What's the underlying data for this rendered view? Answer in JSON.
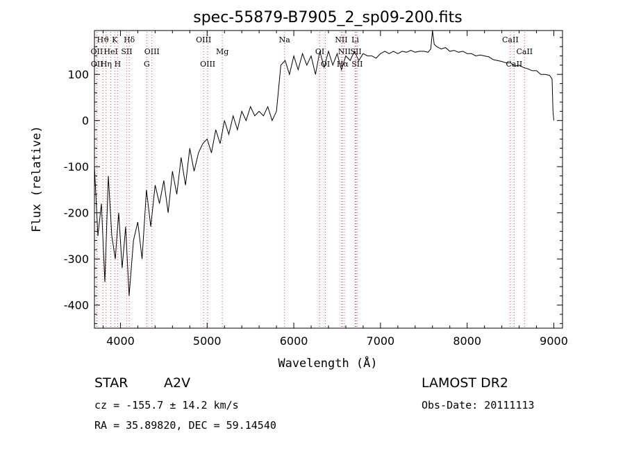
{
  "chart_data": {
    "type": "line",
    "title": "spec-55879-B7905_2_sp09-200.fits",
    "xlabel": "Wavelength (Å)",
    "ylabel": "Flux (relative)",
    "xlim": [
      3700,
      9100
    ],
    "ylim": [
      -450,
      195
    ],
    "xticks": [
      4000,
      5000,
      6000,
      7000,
      8000,
      9000
    ],
    "yticks": [
      -400,
      -300,
      -200,
      -100,
      0,
      100
    ],
    "grid": false,
    "series": [
      {
        "color": "#000000",
        "x": [
          3700,
          3740,
          3780,
          3820,
          3860,
          3900,
          3940,
          3980,
          4020,
          4060,
          4100,
          4150,
          4200,
          4250,
          4300,
          4350,
          4400,
          4450,
          4500,
          4550,
          4600,
          4650,
          4700,
          4750,
          4800,
          4850,
          4900,
          4950,
          5000,
          5050,
          5100,
          5150,
          5200,
          5250,
          5300,
          5350,
          5400,
          5450,
          5500,
          5550,
          5600,
          5650,
          5700,
          5750,
          5800,
          5850,
          5900,
          5950,
          6000,
          6050,
          6100,
          6150,
          6200,
          6250,
          6300,
          6350,
          6400,
          6450,
          6500,
          6550,
          6600,
          6650,
          6700,
          6750,
          6800,
          6850,
          6900,
          6950,
          7000,
          7050,
          7100,
          7150,
          7200,
          7250,
          7300,
          7350,
          7400,
          7450,
          7500,
          7550,
          7580,
          7600,
          7620,
          7650,
          7700,
          7750,
          7800,
          7850,
          7900,
          7950,
          8000,
          8050,
          8100,
          8150,
          8200,
          8250,
          8300,
          8350,
          8400,
          8450,
          8500,
          8550,
          8600,
          8650,
          8700,
          8750,
          8800,
          8850,
          8900,
          8950,
          8980,
          8990,
          9000
        ],
        "values": [
          -100,
          -250,
          -180,
          -350,
          -120,
          -250,
          -300,
          -200,
          -320,
          -230,
          -380,
          -260,
          -220,
          -300,
          -150,
          -230,
          -140,
          -180,
          -130,
          -200,
          -110,
          -160,
          -80,
          -140,
          -60,
          -110,
          -70,
          -50,
          -40,
          -70,
          -20,
          -50,
          0,
          -30,
          10,
          -20,
          20,
          0,
          30,
          10,
          20,
          10,
          30,
          0,
          20,
          120,
          130,
          100,
          140,
          110,
          145,
          120,
          140,
          100,
          150,
          115,
          150,
          120,
          145,
          110,
          140,
          130,
          150,
          130,
          145,
          140,
          140,
          135,
          145,
          150,
          145,
          150,
          145,
          150,
          148,
          152,
          148,
          150,
          150,
          148,
          155,
          195,
          165,
          160,
          155,
          158,
          150,
          152,
          148,
          150,
          145,
          145,
          140,
          142,
          140,
          138,
          132,
          130,
          128,
          125,
          125,
          118,
          120,
          115,
          112,
          108,
          108,
          100,
          100,
          98,
          90,
          20,
          0
        ]
      }
    ],
    "line_labels": [
      {
        "text": "Hϑ",
        "wavelength": 3798,
        "row": 0
      },
      {
        "text": "K",
        "wavelength": 3934,
        "row": 0
      },
      {
        "text": "Hδ",
        "wavelength": 4102,
        "row": 0
      },
      {
        "text": "OIII",
        "wavelength": 4959,
        "row": 0
      },
      {
        "text": "Na",
        "wavelength": 5893,
        "row": 0
      },
      {
        "text": "NII",
        "wavelength": 6548,
        "row": 0
      },
      {
        "text": "Li",
        "wavelength": 6708,
        "row": 0
      },
      {
        "text": "CaII",
        "wavelength": 8498,
        "row": 0
      },
      {
        "text": "OII",
        "wavelength": 3727,
        "row": 1
      },
      {
        "text": "HeI",
        "wavelength": 3889,
        "row": 1
      },
      {
        "text": "SII",
        "wavelength": 4072,
        "row": 1
      },
      {
        "text": "OIII",
        "wavelength": 4363,
        "row": 1
      },
      {
        "text": "Mg",
        "wavelength": 5175,
        "row": 1
      },
      {
        "text": "OI",
        "wavelength": 6300,
        "row": 1
      },
      {
        "text": "NII",
        "wavelength": 6584,
        "row": 1
      },
      {
        "text": "SII",
        "wavelength": 6717,
        "row": 1
      },
      {
        "text": "CaII",
        "wavelength": 8662,
        "row": 1
      },
      {
        "text": "OII",
        "wavelength": 3729,
        "row": 2
      },
      {
        "text": "Hη",
        "wavelength": 3835,
        "row": 2
      },
      {
        "text": "H",
        "wavelength": 3968,
        "row": 2
      },
      {
        "text": "G",
        "wavelength": 4304,
        "row": 2
      },
      {
        "text": "OIII",
        "wavelength": 5007,
        "row": 2
      },
      {
        "text": "OI",
        "wavelength": 6364,
        "row": 2
      },
      {
        "text": "Hα",
        "wavelength": 6563,
        "row": 2
      },
      {
        "text": "SII",
        "wavelength": 6731,
        "row": 2
      },
      {
        "text": "CaII",
        "wavelength": 8542,
        "row": 2
      }
    ]
  },
  "info": {
    "object_class": "STAR",
    "subclass": "A2V",
    "survey": "LAMOST DR2",
    "cz": "cz = -155.7 ± 14.2 km/s",
    "obs_date": "Obs-Date: 20111113",
    "coords": "RA =  35.89820, DEC =  59.14540"
  }
}
